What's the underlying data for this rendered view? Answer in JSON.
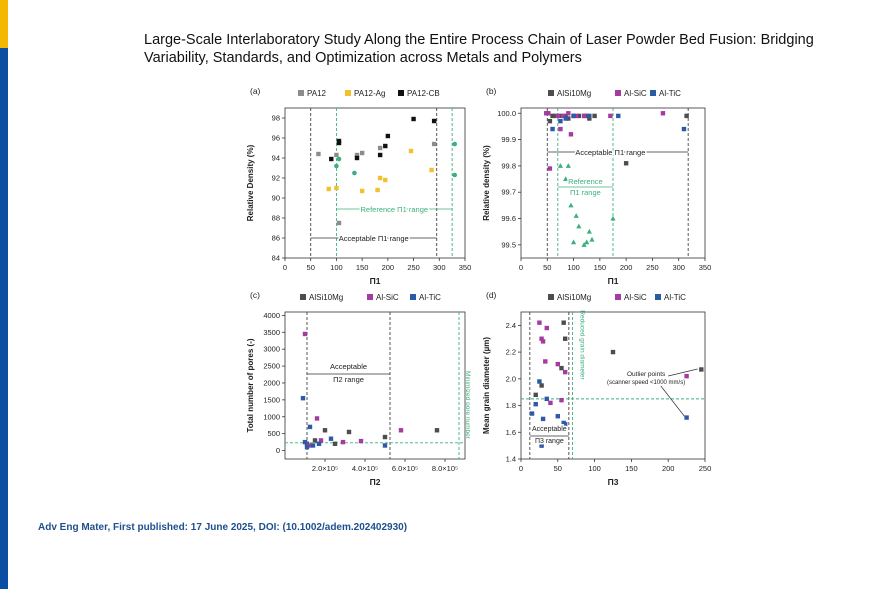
{
  "slide": {
    "title": "Large-Scale Interlaboratory Study Along the Entire Process Chain of Laser Powder Bed Fusion: Bridging Variability, Standards, and Optimization across Metals and Polymers",
    "footer": "Adv Eng Mater, First published: 17 June 2025, DOI: (10.1002/adem.202402930)",
    "colors": {
      "accent_blue": "#0b4ea2",
      "accent_yellow": "#f5b800"
    }
  },
  "chart_data": [
    {
      "panel_label": "(a)",
      "type": "scatter",
      "xlabel": "Π1",
      "ylabel": "Relative Density (%)",
      "xlim": [
        0,
        350
      ],
      "ylim": [
        84,
        99
      ],
      "xticks": [
        "0",
        "50",
        "100",
        "150",
        "200",
        "250",
        "300",
        "350"
      ],
      "yticks": [
        "84",
        "86",
        "88",
        "90",
        "92",
        "94",
        "96",
        "98"
      ],
      "legend": {
        "position": "top",
        "entries": [
          "PA12",
          "PA12-Ag",
          "PA12-CB"
        ]
      },
      "series": [
        {
          "name": "PA12",
          "color": "#8c8c8c",
          "points": [
            [
              65,
              94.4
            ],
            [
              100,
              94.3
            ],
            [
              140,
              94.3
            ],
            [
              150,
              94.5
            ],
            [
              185,
              95.0
            ],
            [
              290,
              95.4
            ],
            [
              105,
              87.5
            ]
          ]
        },
        {
          "name": "PA12-Ag",
          "color": "#f2c12e",
          "points": [
            [
              85,
              90.9
            ],
            [
              100,
              91.0
            ],
            [
              150,
              90.7
            ],
            [
              180,
              90.8
            ],
            [
              185,
              92.0
            ],
            [
              195,
              91.8
            ],
            [
              245,
              94.7
            ],
            [
              285,
              92.8
            ]
          ]
        },
        {
          "name": "PA12-CB",
          "color": "#111111",
          "points": [
            [
              90,
              93.9
            ],
            [
              105,
              95.5
            ],
            [
              105,
              95.7
            ],
            [
              140,
              94.0
            ],
            [
              185,
              94.3
            ],
            [
              195,
              95.2
            ],
            [
              200,
              96.2
            ],
            [
              250,
              97.9
            ],
            [
              290,
              97.7
            ]
          ]
        },
        {
          "name": "",
          "color": "#3cb07c",
          "points": [
            [
              100,
              93.2
            ],
            [
              105,
              93.9
            ],
            [
              135,
              92.5
            ],
            [
              330,
              95.4
            ],
            [
              330,
              92.3
            ]
          ]
        }
      ],
      "vlines": [
        {
          "x": 50,
          "style": "dashed",
          "color": "#444444"
        },
        {
          "x": 295,
          "style": "dashed",
          "color": "#444444"
        },
        {
          "x": 100,
          "style": "dashed",
          "color": "#3cb07c"
        },
        {
          "x": 325,
          "style": "dashed",
          "color": "#3cb07c"
        }
      ],
      "annotations": {
        "reference": "Reference Π1 range",
        "acceptable": "Acceptable Π1 range"
      }
    },
    {
      "panel_label": "(b)",
      "type": "scatter",
      "xlabel": "Π1",
      "ylabel": "Relative density (%)",
      "xlim": [
        0,
        350
      ],
      "ylim": [
        99.45,
        100.02
      ],
      "xticks": [
        "0",
        "50",
        "100",
        "150",
        "200",
        "250",
        "300",
        "350"
      ],
      "yticks": [
        "99.5",
        "99.6",
        "99.7",
        "99.8",
        "99.9",
        "100.0"
      ],
      "legend": {
        "position": "top",
        "entries": [
          "AlSi10Mg",
          "Al-SiC",
          "Al-TiC"
        ]
      },
      "series": [
        {
          "name": "AlSi10Mg",
          "color": "#4d4d4d",
          "points": [
            [
              55,
              99.97
            ],
            [
              60,
              99.99
            ],
            [
              65,
              99.99
            ],
            [
              75,
              99.99
            ],
            [
              85,
              99.99
            ],
            [
              90,
              99.98
            ],
            [
              100,
              99.99
            ],
            [
              110,
              99.99
            ],
            [
              120,
              99.99
            ],
            [
              125,
              99.99
            ],
            [
              130,
              99.98
            ],
            [
              140,
              99.99
            ],
            [
              200,
              99.81
            ],
            [
              315,
              99.99
            ]
          ]
        },
        {
          "name": "Al-SiC",
          "color": "#a53aa0",
          "points": [
            [
              48,
              100.0
            ],
            [
              52,
              100.0
            ],
            [
              55,
              99.79
            ],
            [
              70,
              99.99
            ],
            [
              75,
              99.94
            ],
            [
              80,
              99.99
            ],
            [
              90,
              100.0
            ],
            [
              95,
              99.92
            ],
            [
              105,
              99.99
            ],
            [
              120,
              99.99
            ],
            [
              170,
              99.99
            ],
            [
              270,
              100.0
            ]
          ]
        },
        {
          "name": "Al-TiC",
          "color": "#2d5aa6",
          "points": [
            [
              60,
              99.94
            ],
            [
              75,
              99.97
            ],
            [
              85,
              99.98
            ],
            [
              100,
              99.99
            ],
            [
              130,
              99.99
            ],
            [
              185,
              99.99
            ],
            [
              310,
              99.94
            ]
          ]
        },
        {
          "name": "",
          "color": "#3cb07c",
          "points": [
            [
              75,
              99.8
            ],
            [
              85,
              99.75
            ],
            [
              90,
              99.8
            ],
            [
              95,
              99.65
            ],
            [
              100,
              99.51
            ],
            [
              105,
              99.61
            ],
            [
              110,
              99.57
            ],
            [
              120,
              99.5
            ],
            [
              125,
              99.51
            ],
            [
              130,
              99.55
            ],
            [
              135,
              99.52
            ],
            [
              175,
              99.6
            ]
          ]
        }
      ],
      "vlines": [
        {
          "x": 50,
          "style": "dashed",
          "color": "#444444"
        },
        {
          "x": 318,
          "style": "dashed",
          "color": "#444444"
        },
        {
          "x": 70,
          "style": "dashed",
          "color": "#3cb07c"
        },
        {
          "x": 175,
          "style": "dashed",
          "color": "#3cb07c"
        }
      ],
      "annotations": {
        "acceptable": "Acceptable Π1 range",
        "reference_1": "Reference",
        "reference_2": "Π1 range"
      }
    },
    {
      "panel_label": "(c)",
      "type": "scatter",
      "xlabel": "Π2",
      "ylabel": "Total number of pores (-)",
      "xlim": [
        0,
        900000
      ],
      "ylim": [
        -250,
        4100
      ],
      "xticks": [
        "2.0×10⁵",
        "4.0×10⁵",
        "6.0×10⁵",
        "8.0×10⁵"
      ],
      "yticks": [
        "0",
        "500",
        "1000",
        "1500",
        "2000",
        "2500",
        "3000",
        "3500",
        "4000"
      ],
      "legend": {
        "position": "top",
        "entries": [
          "AlSi10Mg",
          "Al-SiC",
          "Al-TiC"
        ]
      },
      "series": [
        {
          "name": "AlSi10Mg",
          "color": "#4d4d4d",
          "points": [
            [
              110000,
              200
            ],
            [
              150000,
              300
            ],
            [
              200000,
              600
            ],
            [
              250000,
              200
            ],
            [
              320000,
              550
            ],
            [
              500000,
              400
            ],
            [
              760000,
              600
            ]
          ]
        },
        {
          "name": "Al-SiC",
          "color": "#a53aa0",
          "points": [
            [
              100000,
              3450
            ],
            [
              120000,
              150
            ],
            [
              160000,
              950
            ],
            [
              180000,
              300
            ],
            [
              290000,
              250
            ],
            [
              380000,
              280
            ],
            [
              580000,
              600
            ]
          ]
        },
        {
          "name": "Al-TiC",
          "color": "#2d5aa6",
          "points": [
            [
              90000,
              1550
            ],
            [
              100000,
              250
            ],
            [
              110000,
              100
            ],
            [
              125000,
              700
            ],
            [
              140000,
              150
            ],
            [
              170000,
              200
            ],
            [
              230000,
              350
            ],
            [
              500000,
              150
            ]
          ]
        }
      ],
      "vlines": [
        {
          "x": 110000,
          "style": "dashed",
          "color": "#444444"
        },
        {
          "x": 525000,
          "style": "dashed",
          "color": "#444444"
        },
        {
          "x": 870000,
          "style": "dashed",
          "color": "#3cb07c"
        }
      ],
      "hlines": [
        {
          "y": 230,
          "style": "dashed",
          "color": "#3cb07c"
        }
      ],
      "annotations": {
        "acceptable_1": "Acceptable",
        "acceptable_2": "Π2 range",
        "minimized": "Minimized pore number"
      }
    },
    {
      "panel_label": "(d)",
      "type": "scatter",
      "xlabel": "Π3",
      "ylabel": "Mean grain diameter (µm)",
      "xlim": [
        0,
        250
      ],
      "ylim": [
        1.4,
        2.5
      ],
      "xticks": [
        "0",
        "50",
        "100",
        "150",
        "200",
        "250"
      ],
      "yticks": [
        "1.4",
        "1.6",
        "1.8",
        "2.0",
        "2.2",
        "2.4"
      ],
      "legend": {
        "position": "top",
        "entries": [
          "AlSi10Mg",
          "Al-SiC",
          "Al-TiC"
        ]
      },
      "series": [
        {
          "name": "AlSi10Mg",
          "color": "#4d4d4d",
          "points": [
            [
              20,
              1.88
            ],
            [
              28,
              1.95
            ],
            [
              55,
              2.08
            ],
            [
              58,
              2.42
            ],
            [
              60,
              2.3
            ],
            [
              125,
              2.2
            ],
            [
              245,
              2.07
            ]
          ]
        },
        {
          "name": "Al-SiC",
          "color": "#a53aa0",
          "points": [
            [
              25,
              2.42
            ],
            [
              28,
              2.3
            ],
            [
              30,
              2.28
            ],
            [
              33,
              2.13
            ],
            [
              35,
              2.38
            ],
            [
              40,
              1.82
            ],
            [
              50,
              2.11
            ],
            [
              55,
              1.84
            ],
            [
              60,
              2.05
            ],
            [
              225,
              2.02
            ]
          ]
        },
        {
          "name": "Al-TiC",
          "color": "#2d5aa6",
          "points": [
            [
              15,
              1.74
            ],
            [
              20,
              1.81
            ],
            [
              25,
              1.98
            ],
            [
              30,
              1.7
            ],
            [
              35,
              1.85
            ],
            [
              50,
              1.72
            ],
            [
              58,
              1.67
            ],
            [
              60,
              1.66
            ],
            [
              225,
              1.71
            ],
            [
              28,
              1.5
            ]
          ]
        }
      ],
      "vlines": [
        {
          "x": 12,
          "style": "dashed",
          "color": "#444444"
        },
        {
          "x": 65,
          "style": "dashed",
          "color": "#444444"
        },
        {
          "x": 70,
          "style": "dashed",
          "color": "#3cb07c"
        }
      ],
      "hlines": [
        {
          "y": 1.85,
          "style": "dashed",
          "color": "#3cb07c"
        }
      ],
      "annotations": {
        "acceptable_1": "Acceptable",
        "acceptable_2": "Π3 range",
        "reduced": "Reduced grain diameter",
        "outlier_1": "Outlier points",
        "outlier_2": "(scanner speed <1000 mm/s)"
      }
    }
  ]
}
